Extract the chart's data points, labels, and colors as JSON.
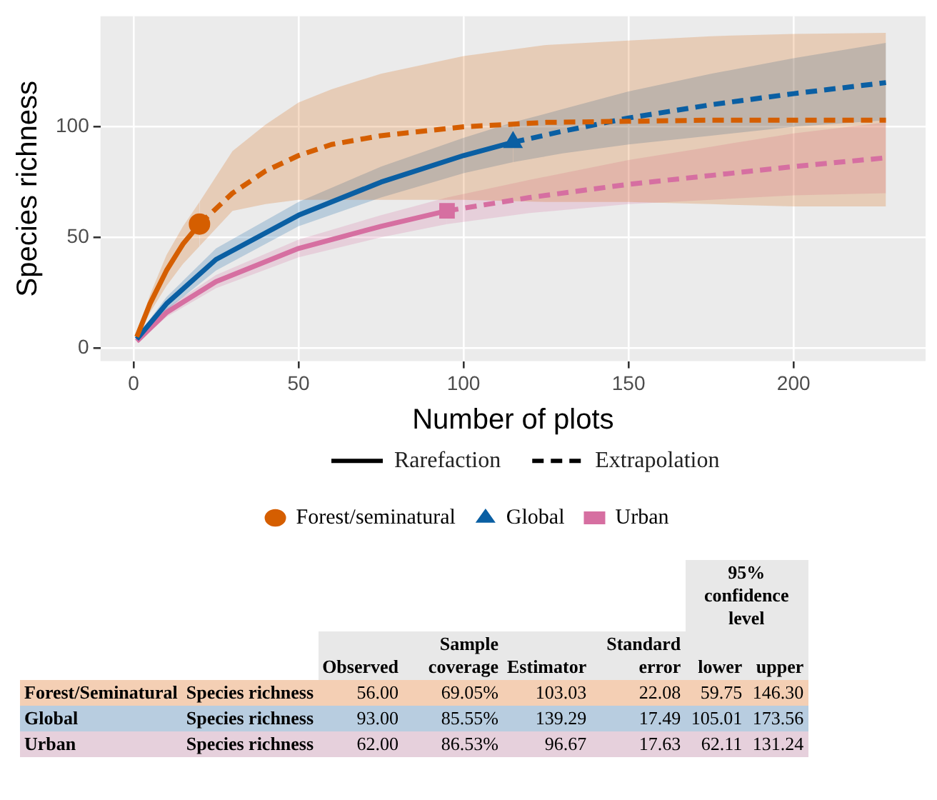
{
  "chart_data": [
    {
      "type": "line",
      "xlabel": "Number of plots",
      "ylabel": "Species richness",
      "xlim": [
        -10,
        240
      ],
      "ylim": [
        -6,
        150
      ],
      "xticks": [
        0,
        50,
        100,
        150,
        200
      ],
      "yticks": [
        0,
        50,
        100
      ],
      "grid": true,
      "legend": "bottom",
      "annotations": [
        "Rarefaction",
        "Extrapolation"
      ],
      "series": [
        {
          "type": "line",
          "color": "#d55e00",
          "line_style": "solid",
          "x": [
            1,
            5,
            10,
            15,
            20
          ],
          "values": [
            5,
            20,
            35,
            47,
            56
          ],
          "lower": [
            4,
            16,
            28,
            38,
            46
          ],
          "upper": [
            6,
            24,
            42,
            55,
            66
          ]
        },
        {
          "type": "line",
          "color": "#d55e00",
          "line_style": "dashed",
          "x": [
            20,
            30,
            40,
            50,
            60,
            75,
            100,
            125,
            150,
            175,
            200,
            228
          ],
          "values": [
            56,
            70,
            80,
            87,
            92,
            96,
            100,
            102,
            102.5,
            103,
            103,
            103
          ],
          "lower": [
            46,
            62,
            65,
            67,
            67,
            67,
            67,
            66,
            66,
            65,
            64,
            64
          ],
          "upper": [
            66,
            89,
            101,
            111,
            117,
            124,
            132,
            137,
            139,
            141,
            142,
            142.5
          ]
        },
        {
          "type": "scatter",
          "name": "Forest/seminatural",
          "color": "#d55e00",
          "marker": "circle",
          "x": [
            20
          ],
          "values": [
            56
          ]
        },
        {
          "type": "line",
          "color": "#0a5fa3",
          "line_style": "solid",
          "x": [
            1,
            10,
            25,
            50,
            75,
            100,
            115
          ],
          "values": [
            4,
            20,
            40,
            60,
            75,
            87,
            93
          ],
          "lower": [
            3,
            17,
            35,
            55,
            68,
            79,
            84
          ],
          "upper": [
            5,
            23,
            45,
            66,
            82,
            95,
            102
          ]
        },
        {
          "type": "line",
          "color": "#0a5fa3",
          "line_style": "dashed",
          "x": [
            115,
            130,
            150,
            175,
            200,
            228
          ],
          "values": [
            93,
            98,
            104,
            110,
            115,
            120
          ],
          "lower": [
            84,
            88,
            92,
            96,
            100,
            103
          ],
          "upper": [
            102,
            108,
            116,
            124,
            131,
            138
          ]
        },
        {
          "type": "scatter",
          "name": "Global",
          "color": "#0a5fa3",
          "marker": "triangle",
          "x": [
            115
          ],
          "values": [
            93
          ]
        },
        {
          "type": "line",
          "color": "#d66fa1",
          "line_style": "solid",
          "x": [
            1,
            10,
            25,
            50,
            75,
            95
          ],
          "values": [
            3,
            16,
            30,
            45,
            55,
            62
          ],
          "lower": [
            2,
            14,
            27,
            41,
            50,
            56
          ],
          "upper": [
            4,
            18,
            33,
            49,
            60,
            68
          ]
        },
        {
          "type": "line",
          "color": "#d66fa1",
          "line_style": "dashed",
          "x": [
            95,
            120,
            150,
            175,
            200,
            228
          ],
          "values": [
            62,
            68,
            74,
            78,
            82,
            86
          ],
          "lower": [
            56,
            61,
            65,
            67,
            69,
            70
          ],
          "upper": [
            68,
            76,
            85,
            91,
            97,
            102
          ]
        },
        {
          "type": "scatter",
          "name": "Urban",
          "color": "#d66fa1",
          "marker": "square",
          "x": [
            95
          ],
          "values": [
            62
          ]
        }
      ]
    },
    {
      "type": "other",
      "annotations": [
        "95% confidence level",
        "Observed",
        "Sample coverage",
        "Estimator",
        "Standard error",
        "lower",
        "upper",
        "Forest/Seminatural",
        "Species richness",
        "56.00",
        "69.05%",
        "103.03",
        "22.08",
        "59.75",
        "146.30",
        "Global",
        "Species richness",
        "93.00",
        "85.55%",
        "139.29",
        "17.49",
        "105.01",
        "173.56",
        "Urban",
        "Species richness",
        "62.00",
        "86.53%",
        "96.67",
        "17.63",
        "62.11",
        "131.24"
      ]
    }
  ]
}
